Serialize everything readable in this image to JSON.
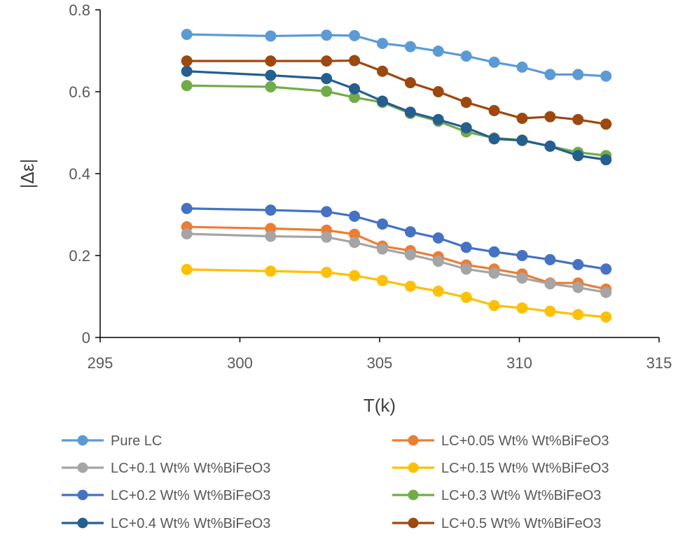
{
  "chart_data": {
    "type": "line",
    "title": "",
    "xlabel": "T(k)",
    "ylabel": "|Δε|",
    "xlim": [
      295,
      315
    ],
    "ylim": [
      0,
      0.8
    ],
    "xticks": [
      295,
      300,
      305,
      310,
      315
    ],
    "yticks": [
      0,
      0.2,
      0.4,
      0.6,
      0.8
    ],
    "ytick_labels": [
      "0",
      "0.2",
      "0.4",
      "0.6",
      "0.8"
    ],
    "grid": false,
    "legend_position": "bottom",
    "x": [
      298.1,
      301.1,
      303.1,
      304.1,
      305.1,
      306.1,
      307.1,
      308.1,
      309.1,
      310.1,
      311.1,
      312.1,
      313.1
    ],
    "series": [
      {
        "name": "Pure LC",
        "color": "#5B9BD5",
        "values": [
          0.74,
          0.736,
          0.738,
          0.737,
          0.718,
          0.71,
          0.699,
          0.687,
          0.672,
          0.66,
          0.642,
          0.642,
          0.638
        ]
      },
      {
        "name": "LC+0.05 Wt% Wt%BiFeO3",
        "color": "#ED7D31",
        "values": [
          0.27,
          0.266,
          0.262,
          0.252,
          0.223,
          0.212,
          0.197,
          0.177,
          0.167,
          0.155,
          0.133,
          0.133,
          0.118
        ]
      },
      {
        "name": "LC+0.1 Wt% Wt%BiFeO3",
        "color": "#A5A5A5",
        "values": [
          0.253,
          0.247,
          0.245,
          0.232,
          0.216,
          0.202,
          0.186,
          0.167,
          0.157,
          0.145,
          0.131,
          0.122,
          0.11
        ]
      },
      {
        "name": "LC+0.15 Wt% Wt%BiFeO3",
        "color": "#FFC000",
        "values": [
          0.166,
          0.162,
          0.159,
          0.151,
          0.139,
          0.125,
          0.113,
          0.098,
          0.078,
          0.072,
          0.064,
          0.056,
          0.05
        ]
      },
      {
        "name": "LC+0.2 Wt% Wt%BiFeO3",
        "color": "#4472C4",
        "values": [
          0.315,
          0.311,
          0.307,
          0.296,
          0.277,
          0.258,
          0.243,
          0.22,
          0.209,
          0.2,
          0.19,
          0.178,
          0.167
        ]
      },
      {
        "name": "LC+0.3 Wt% Wt%BiFeO3",
        "color": "#70AD47",
        "values": [
          0.615,
          0.612,
          0.601,
          0.586,
          0.574,
          0.547,
          0.528,
          0.502,
          0.487,
          0.482,
          0.467,
          0.452,
          0.444
        ]
      },
      {
        "name": "LC+0.4 Wt% Wt%BiFeO3",
        "color": "#255E91",
        "values": [
          0.65,
          0.64,
          0.632,
          0.607,
          0.577,
          0.55,
          0.532,
          0.512,
          0.485,
          0.481,
          0.467,
          0.444,
          0.434
        ]
      },
      {
        "name": "LC+0.5 Wt% Wt%BiFeO3",
        "color": "#9E480E",
        "values": [
          0.675,
          0.675,
          0.675,
          0.676,
          0.65,
          0.622,
          0.6,
          0.574,
          0.554,
          0.535,
          0.539,
          0.532,
          0.521
        ]
      }
    ]
  }
}
